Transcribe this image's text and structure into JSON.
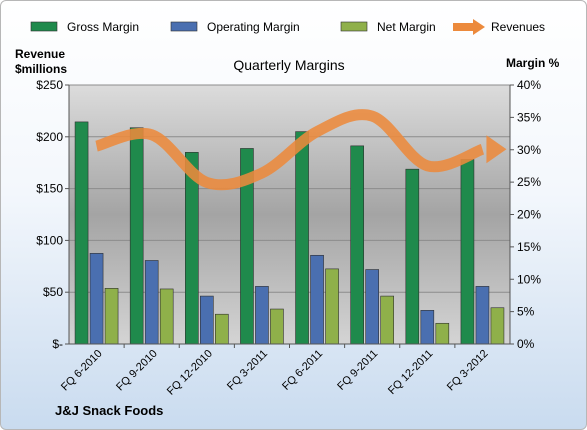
{
  "chart_data": {
    "type": "bar",
    "title": "Quarterly Margins",
    "categories": [
      "FQ 6-2010",
      "FQ 9-2010",
      "FQ 12-2010",
      "FQ 3-2011",
      "FQ 6-2011",
      "FQ 9-2011",
      "FQ 12-2011",
      "FQ 3-2012"
    ],
    "left_axis": {
      "label_line1": "Revenue",
      "label_line2": "$millions",
      "min": 0,
      "max": 250,
      "step": 50,
      "tick_labels": [
        "$-",
        "$50",
        "$100",
        "$150",
        "$200",
        "$250"
      ]
    },
    "right_axis": {
      "label": "Margin %",
      "min": 0,
      "max": 40,
      "step": 5,
      "tick_labels": [
        "0%",
        "5%",
        "10%",
        "15%",
        "20%",
        "25%",
        "30%",
        "35%",
        "40%"
      ]
    },
    "series": [
      {
        "name": "Gross Margin",
        "type": "bar",
        "axis": "right",
        "color": "#1f8a4c",
        "values": [
          34.3,
          33.4,
          29.6,
          30.2,
          32.8,
          30.6,
          27.0,
          28.5
        ]
      },
      {
        "name": "Operating Margin",
        "type": "bar",
        "axis": "right",
        "color": "#4a6fb0",
        "values": [
          14.0,
          12.9,
          7.4,
          8.9,
          13.7,
          11.5,
          5.2,
          8.9
        ]
      },
      {
        "name": "Net Margin",
        "type": "bar",
        "axis": "right",
        "color": "#8fb04a",
        "values": [
          8.6,
          8.5,
          4.6,
          5.4,
          11.6,
          7.4,
          3.2,
          5.6
        ]
      },
      {
        "name": "Revenues",
        "type": "line",
        "axis": "left",
        "color": "#ec8a3c",
        "values": [
          191,
          202,
          156,
          165,
          205,
          220,
          172,
          188
        ]
      }
    ],
    "legend_position": "top",
    "grid": true,
    "footer_label": "J&J Snack Foods"
  }
}
